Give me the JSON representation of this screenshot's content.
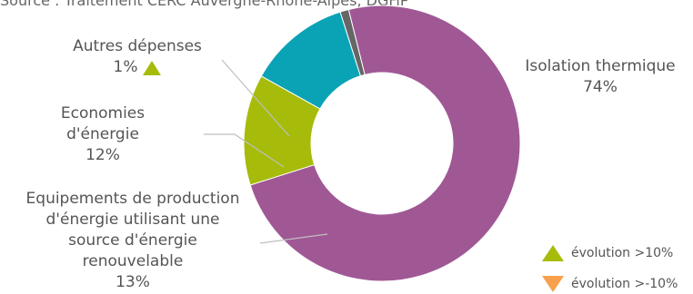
{
  "source": "Source : Traitement CERC Auvergne-Rhône-Alpes, DGFiP",
  "colors": {
    "isolation": "#a05895",
    "renouvelable": "#a7bb0a",
    "economies": "#0aa3b5",
    "autres": "#666666",
    "evolution_up": "#a7bb0a",
    "evolution_down": "#f7a14e",
    "leader": "#bfbfbf"
  },
  "chart_data": {
    "type": "pie",
    "donut": true,
    "slices": [
      {
        "label_lines": [
          "Isolation thermique"
        ],
        "pct_text": "74%",
        "value": 74,
        "trend": null
      },
      {
        "label_lines": [
          "Equipements de production",
          "d'énergie utilisant une",
          "source d'énergie",
          "renouvelable"
        ],
        "pct_text": "13%",
        "value": 13,
        "trend": null
      },
      {
        "label_lines": [
          "Economies",
          "d'énergie"
        ],
        "pct_text": "12%",
        "value": 12,
        "trend": null
      },
      {
        "label_lines": [
          "Autres dépenses"
        ],
        "pct_text": "1%",
        "value": 1,
        "trend": "up"
      }
    ],
    "legend": [
      {
        "text": "évolution >10%",
        "symbol": "triangle-up"
      },
      {
        "text": "évolution >-10%",
        "symbol": "triangle-down"
      }
    ],
    "legend_position": "bottom-right"
  }
}
